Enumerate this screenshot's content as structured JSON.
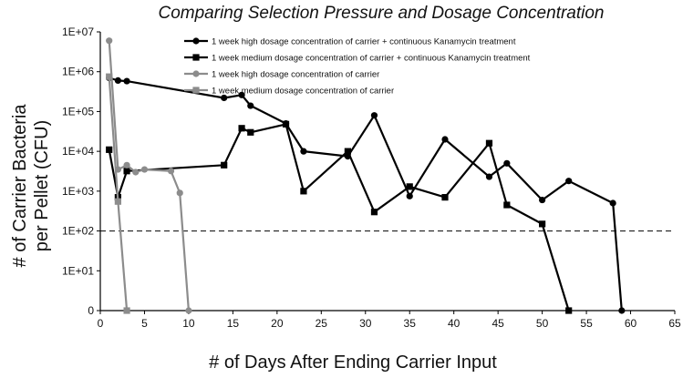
{
  "chart_data": {
    "type": "line",
    "title": "Comparing Selection Pressure and Dosage Concentration",
    "xlabel": "# of Days After Ending Carrier Input",
    "ylabel_line1": "# of  Carrier Bacteria",
    "ylabel_line2": "per Pellet (CFU)",
    "xlim": [
      0,
      65
    ],
    "x_ticks": [
      0,
      5,
      10,
      15,
      20,
      25,
      30,
      35,
      40,
      45,
      50,
      55,
      60,
      65
    ],
    "y_scale": "log",
    "y_tick_labels": [
      "0",
      "1E+01",
      "1E+02",
      "1E+03",
      "1E+04",
      "1E+05",
      "1E+06",
      "1E+07"
    ],
    "y_tick_exponents": [
      0,
      1,
      2,
      3,
      4,
      5,
      6,
      7
    ],
    "reference_line": {
      "y_exponent": 2,
      "style": "dashed"
    },
    "series": [
      {
        "name": "1 week high dosage concentration of carrier + continuous Kanamycin treatment",
        "color": "#000000",
        "marker": "circle",
        "points": [
          [
            1,
            700000
          ],
          [
            2,
            600000
          ],
          [
            3,
            580000
          ],
          [
            14,
            220000
          ],
          [
            16,
            260000
          ],
          [
            17,
            140000
          ],
          [
            21,
            50000
          ],
          [
            23,
            10000
          ],
          [
            28,
            7500
          ],
          [
            31,
            80000
          ],
          [
            35,
            750
          ],
          [
            39,
            20000
          ],
          [
            44,
            2300
          ],
          [
            46,
            5000
          ],
          [
            50,
            600
          ],
          [
            53,
            1800
          ],
          [
            58,
            500
          ],
          [
            59,
            0
          ]
        ]
      },
      {
        "name": "1 week medium dosage concentration of carrier + continuous Kanamycin treatment",
        "color": "#000000",
        "marker": "square",
        "points": [
          [
            1,
            11000
          ],
          [
            2,
            700
          ],
          [
            3,
            3200
          ],
          [
            14,
            4500
          ],
          [
            16,
            38000
          ],
          [
            17,
            30000
          ],
          [
            21,
            48000
          ],
          [
            23,
            1000
          ],
          [
            28,
            10000
          ],
          [
            31,
            300
          ],
          [
            35,
            1300
          ],
          [
            39,
            700
          ],
          [
            44,
            16000
          ],
          [
            46,
            450
          ],
          [
            50,
            150
          ],
          [
            53,
            0
          ]
        ]
      },
      {
        "name": "1 week high dosage concentration of carrier",
        "color": "#8c8c8c",
        "marker": "circle",
        "points": [
          [
            1,
            6000000
          ],
          [
            2,
            3500
          ],
          [
            3,
            4500
          ],
          [
            4,
            3000
          ],
          [
            5,
            3500
          ],
          [
            8,
            3200
          ],
          [
            9,
            900
          ],
          [
            10,
            0
          ]
        ]
      },
      {
        "name": "1 week medium dosage concentration of carrier",
        "color": "#8c8c8c",
        "marker": "square",
        "points": [
          [
            1,
            750000
          ],
          [
            2,
            550
          ],
          [
            3,
            0
          ]
        ]
      }
    ]
  }
}
